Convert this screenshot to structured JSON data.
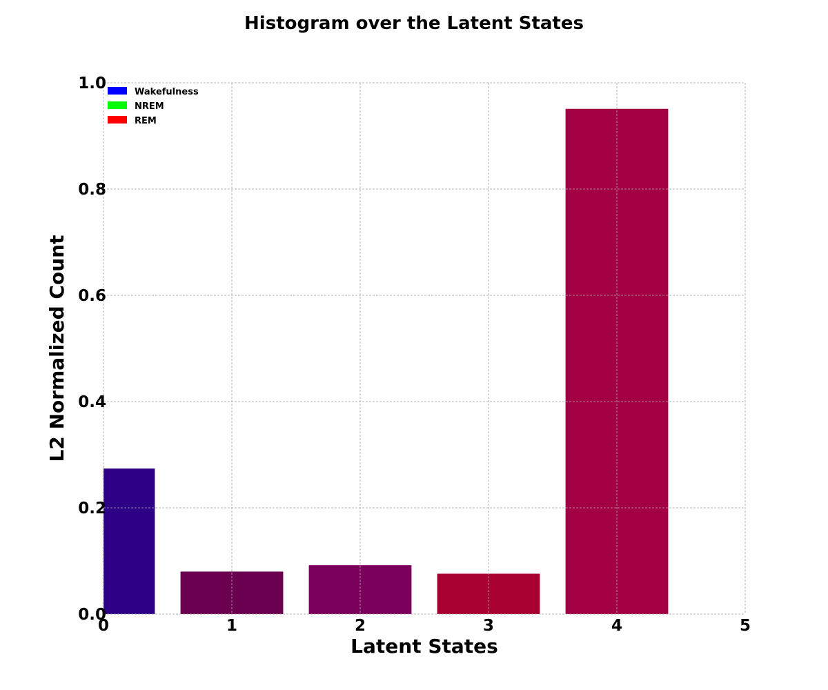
{
  "chart_data": {
    "type": "bar",
    "title": "Histogram over the Latent States",
    "xlabel": "Latent States",
    "ylabel": "L2 Normalized Count",
    "xlim": [
      0,
      5
    ],
    "ylim": [
      0,
      1.0
    ],
    "x_ticks": [
      "0",
      "1",
      "2",
      "3",
      "4",
      "5"
    ],
    "y_ticks": [
      "0.0",
      "0.2",
      "0.4",
      "0.6",
      "0.8",
      "1.0"
    ],
    "grid": true,
    "legend_position": "top-left",
    "legend": [
      {
        "label": "Wakefulness",
        "color": "#0000ff"
      },
      {
        "label": "NREM",
        "color": "#00ff00"
      },
      {
        "label": "REM",
        "color": "#ff0000"
      }
    ],
    "bars": [
      {
        "x": 0,
        "value": 0.274,
        "color": "#2d0085"
      },
      {
        "x": 1,
        "value": 0.08,
        "color": "#6c0050"
      },
      {
        "x": 2,
        "value": 0.092,
        "color": "#7a005c"
      },
      {
        "x": 3,
        "value": 0.076,
        "color": "#a8002f"
      },
      {
        "x": 4,
        "value": 0.951,
        "color": "#a30043"
      }
    ]
  }
}
